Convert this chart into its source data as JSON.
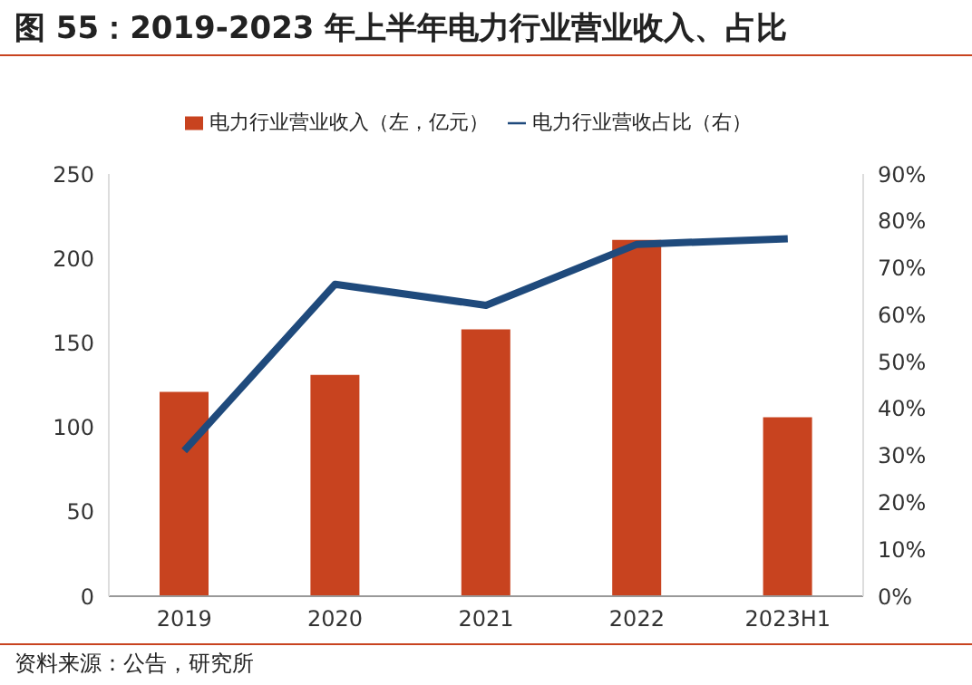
{
  "chart_data": {
    "type": "bar",
    "title": "图 55：2019-2023 年上半年电力行业营业收入、占比",
    "categories": [
      "2019",
      "2020",
      "2021",
      "2022",
      "2023H1"
    ],
    "series": [
      {
        "name": "电力行业营业收入（左，亿元）",
        "color": "#c8431f",
        "values": [
          121,
          131,
          158,
          211,
          106
        ]
      },
      {
        "name": "电力行业营收占比（右）",
        "type": "line",
        "axis": "y2",
        "color": "#1f4a7c",
        "values": [
          31,
          66.5,
          62,
          75,
          76.2
        ]
      }
    ],
    "ylim": [
      0,
      250
    ],
    "yticks": [
      0,
      50,
      100,
      150,
      200,
      250
    ],
    "y2lim": [
      0,
      90
    ],
    "y2ticks": [
      {
        "value": 0,
        "label": "0%"
      },
      {
        "value": 10,
        "label": "10%"
      },
      {
        "value": 20,
        "label": "20%"
      },
      {
        "value": 30,
        "label": "30%"
      },
      {
        "value": 40,
        "label": "40%"
      },
      {
        "value": 50,
        "label": "50%"
      },
      {
        "value": 60,
        "label": "60%"
      },
      {
        "value": 70,
        "label": "70%"
      },
      {
        "value": 80,
        "label": "80%"
      },
      {
        "value": 90,
        "label": "90%"
      }
    ],
    "legend": "top",
    "marker": "none",
    "annotations": [
      "资料来源：公告，研究所"
    ]
  }
}
